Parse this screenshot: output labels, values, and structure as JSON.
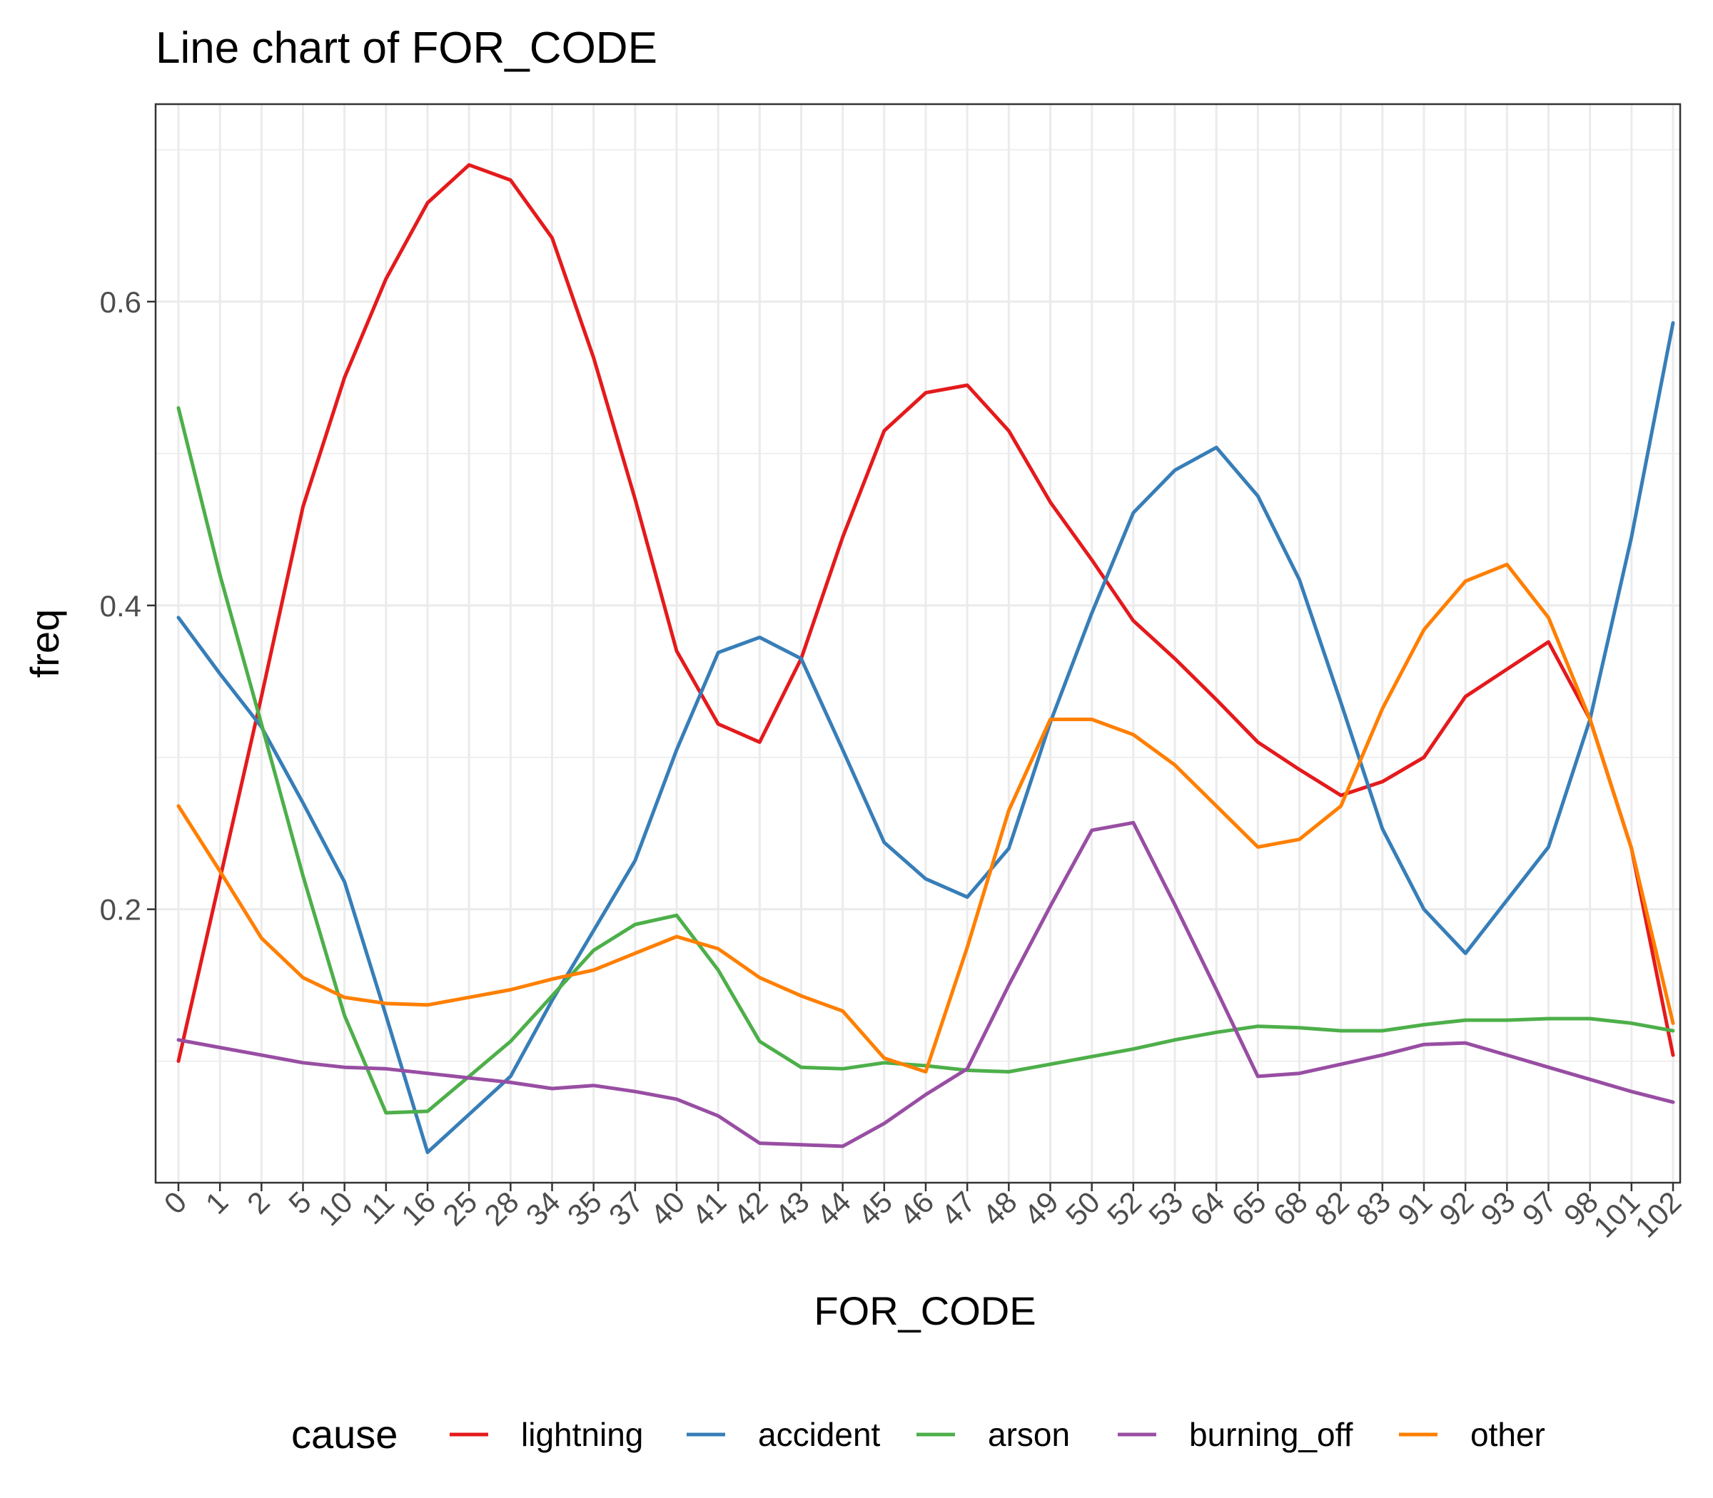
{
  "chart_data": {
    "type": "line",
    "title": "Line chart of FOR_CODE",
    "xlabel": "FOR_CODE",
    "ylabel": "freq",
    "categories": [
      "0",
      "1",
      "2",
      "5",
      "10",
      "11",
      "16",
      "25",
      "28",
      "34",
      "35",
      "37",
      "40",
      "41",
      "42",
      "43",
      "44",
      "45",
      "46",
      "47",
      "48",
      "49",
      "50",
      "52",
      "53",
      "64",
      "65",
      "68",
      "82",
      "83",
      "91",
      "92",
      "93",
      "97",
      "98",
      "101",
      "102"
    ],
    "ylim": [
      0.02,
      0.73
    ],
    "yticks": [
      0.2,
      0.4,
      0.6
    ],
    "ytick_labels": [
      "0.2",
      "0.4",
      "0.6"
    ],
    "grid": true,
    "legend": {
      "title": "cause",
      "position": "bottom"
    },
    "series": [
      {
        "name": "lightning",
        "color": "#E41A1C",
        "values": [
          0.1,
          0.22,
          0.34,
          0.465,
          0.55,
          0.615,
          0.665,
          0.69,
          0.68,
          0.642,
          0.563,
          0.47,
          0.37,
          0.322,
          0.31,
          0.365,
          0.445,
          0.515,
          0.54,
          0.545,
          0.515,
          0.468,
          0.43,
          0.39,
          0.365,
          0.338,
          0.31,
          0.292,
          0.275,
          0.284,
          0.3,
          0.34,
          0.358,
          0.376,
          0.325,
          0.24,
          0.104
        ]
      },
      {
        "name": "accident",
        "color": "#377EB8",
        "values": [
          0.392,
          0.355,
          0.32,
          0.27,
          0.218,
          0.13,
          0.04,
          0.065,
          0.09,
          0.14,
          0.186,
          0.232,
          0.305,
          0.369,
          0.379,
          0.365,
          0.305,
          0.244,
          0.22,
          0.208,
          0.24,
          0.323,
          0.395,
          0.461,
          0.489,
          0.504,
          0.472,
          0.417,
          0.336,
          0.253,
          0.2,
          0.171,
          0.206,
          0.241,
          0.325,
          0.445,
          0.586
        ]
      },
      {
        "name": "arson",
        "color": "#4DAF4A",
        "values": [
          0.53,
          0.42,
          0.322,
          0.222,
          0.13,
          0.066,
          0.067,
          0.09,
          0.113,
          0.143,
          0.173,
          0.19,
          0.196,
          0.16,
          0.113,
          0.096,
          0.095,
          0.099,
          0.097,
          0.094,
          0.093,
          0.098,
          0.103,
          0.108,
          0.114,
          0.119,
          0.123,
          0.122,
          0.12,
          0.12,
          0.124,
          0.127,
          0.127,
          0.128,
          0.128,
          0.125,
          0.12
        ]
      },
      {
        "name": "burning_off",
        "color": "#984EA3",
        "values": [
          0.114,
          0.109,
          0.104,
          0.099,
          0.096,
          0.095,
          0.092,
          0.089,
          0.086,
          0.082,
          0.084,
          0.08,
          0.075,
          0.064,
          0.046,
          0.045,
          0.044,
          0.059,
          0.078,
          0.095,
          0.15,
          0.202,
          0.252,
          0.257,
          0.203,
          0.147,
          0.09,
          0.092,
          0.098,
          0.104,
          0.111,
          0.112,
          0.104,
          0.096,
          0.088,
          0.08,
          0.073
        ]
      },
      {
        "name": "other",
        "color": "#FF7F00",
        "values": [
          0.268,
          0.225,
          0.181,
          0.155,
          0.142,
          0.138,
          0.137,
          0.142,
          0.147,
          0.154,
          0.16,
          0.171,
          0.182,
          0.174,
          0.155,
          0.143,
          0.133,
          0.102,
          0.093,
          0.175,
          0.265,
          0.325,
          0.325,
          0.315,
          0.295,
          0.268,
          0.241,
          0.246,
          0.268,
          0.332,
          0.384,
          0.416,
          0.427,
          0.392,
          0.325,
          0.24,
          0.125
        ]
      }
    ]
  }
}
